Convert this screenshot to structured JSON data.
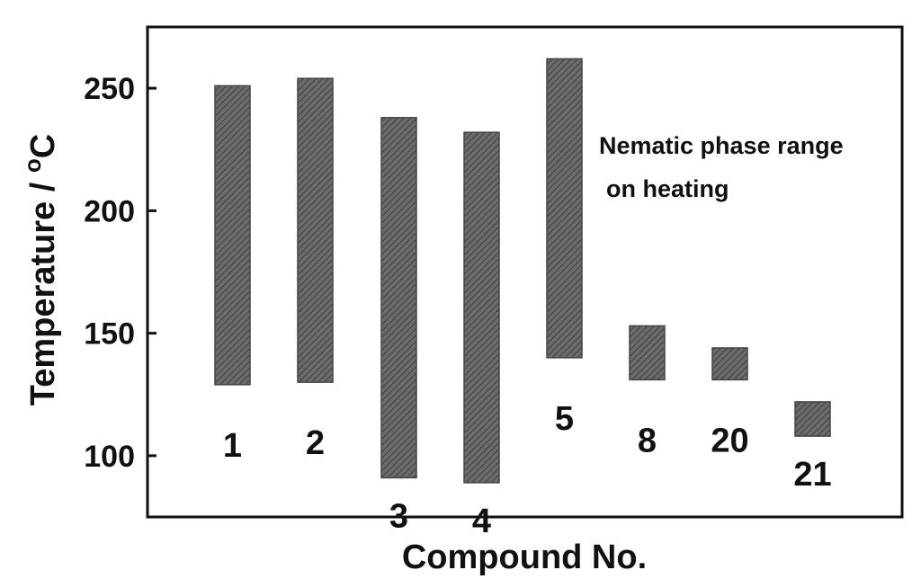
{
  "chart_data": {
    "type": "bar",
    "subtype": "floating-range",
    "categories": [
      "1",
      "2",
      "3",
      "4",
      "5",
      "8",
      "20",
      "21"
    ],
    "ranges": [
      [
        129,
        251
      ],
      [
        130,
        254
      ],
      [
        91,
        238
      ],
      [
        89,
        232
      ],
      [
        140,
        262
      ],
      [
        131,
        153
      ],
      [
        131,
        144
      ],
      [
        108,
        122
      ]
    ],
    "xlabel": "Compound No.",
    "ylabel_main": "Temperature / ",
    "ylabel_sup": "o",
    "ylabel_unit": "C",
    "ylim": [
      75,
      275
    ],
    "yticks": [
      "100",
      "150",
      "200",
      "250"
    ],
    "annotation": [
      "Nematic phase range",
      "on heating"
    ],
    "bar_color": "#555555",
    "grid": false,
    "legend": "none"
  }
}
